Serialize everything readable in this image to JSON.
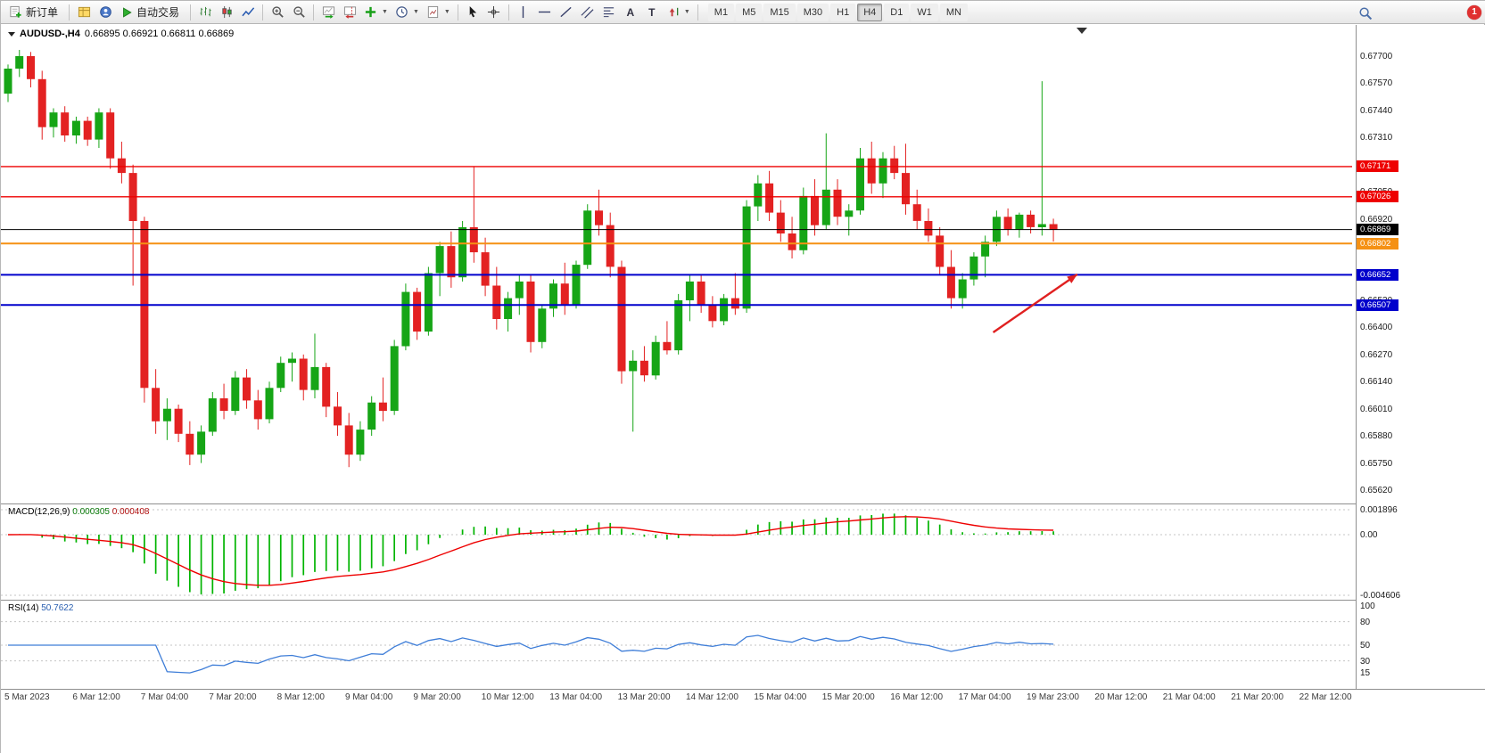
{
  "toolbar": {
    "new_order": "新订单",
    "auto_trading": "自动交易",
    "text_tool": "A",
    "label_tool": "T",
    "timeframes": [
      "M1",
      "M5",
      "M15",
      "M30",
      "H1",
      "H4",
      "D1",
      "W1",
      "MN"
    ],
    "active_timeframe": "H4",
    "notification_count": "1",
    "icons": [
      "new-order-icon",
      "market-watch-icon",
      "navigator-icon",
      "autotrading-icon",
      "bar-chart-icon",
      "candlestick-chart-icon",
      "line-chart-icon",
      "zoom-in-icon",
      "zoom-out-icon",
      "auto-scroll-icon",
      "chart-shift-icon",
      "indicators-icon",
      "periods-icon",
      "templates-icon",
      "cursor-icon",
      "crosshair-icon",
      "vertical-line-icon",
      "horizontal-line-icon",
      "trendline-icon",
      "channel-icon",
      "fibonacci-icon",
      "text-icon",
      "label-icon",
      "shapes-icon",
      "search-icon"
    ]
  },
  "chart": {
    "symbol_period": "AUDUSD-,H4",
    "ohlc": "0.66895 0.66921 0.66811 0.66869",
    "macd_label": "MACD(12,26,9)",
    "macd_value_main": "0.000305",
    "macd_value_signal": "0.000408",
    "rsi_label": "RSI(14)",
    "rsi_value": "50.7622"
  },
  "chart_data": {
    "type": "candlestick",
    "symbol": "AUDUSD",
    "timeframe": "H4",
    "title": "AUDUSD-,H4 0.66895 0.66921 0.66811 0.66869",
    "colors": {
      "up": "#16a516",
      "down": "#e32222",
      "current_price": "#000000"
    },
    "price_axis": {
      "max": 0.677,
      "min": 0.6562,
      "step": 0.0013,
      "ticks": [
        "0.67700",
        "0.67570",
        "0.67440",
        "0.67310",
        "0.67180",
        "0.67050",
        "0.66920",
        "0.66790",
        "0.66660",
        "0.66530",
        "0.66400",
        "0.66270",
        "0.66140",
        "0.66010",
        "0.65880",
        "0.65750",
        "0.65620"
      ]
    },
    "levels": [
      {
        "value": 0.67171,
        "label": "0.67171",
        "color": "#ee0000",
        "line_width": 1.4,
        "type": "resistance"
      },
      {
        "value": 0.67026,
        "label": "0.67026",
        "color": "#ee0000",
        "line_width": 1.4,
        "type": "resistance"
      },
      {
        "value": 0.66869,
        "label": "0.66869",
        "color": "#000000",
        "line_width": 1,
        "type": "current-price"
      },
      {
        "value": 0.66802,
        "label": "0.66802",
        "color": "#f59114",
        "line_width": 2,
        "type": "pivot"
      },
      {
        "value": 0.66652,
        "label": "0.66652",
        "color": "#0000cc",
        "line_width": 2,
        "type": "support"
      },
      {
        "value": 0.66507,
        "label": "0.66507",
        "color": "#0000cc",
        "line_width": 2,
        "type": "support"
      }
    ],
    "time_labels": [
      "5 Mar 2023",
      "6 Mar 12:00",
      "7 Mar 04:00",
      "7 Mar 20:00",
      "8 Mar 12:00",
      "9 Mar 04:00",
      "9 Mar 20:00",
      "10 Mar 12:00",
      "13 Mar 04:00",
      "13 Mar 20:00",
      "14 Mar 12:00",
      "15 Mar 04:00",
      "15 Mar 20:00",
      "16 Mar 12:00",
      "17 Mar 04:00",
      "19 Mar 23:00",
      "20 Mar 12:00",
      "21 Mar 04:00",
      "21 Mar 20:00",
      "22 Mar 12:00"
    ],
    "candles": [
      [
        0.6752,
        0.6766,
        0.6748,
        0.6764
      ],
      [
        0.6764,
        0.6773,
        0.676,
        0.677
      ],
      [
        0.677,
        0.6772,
        0.6755,
        0.6759
      ],
      [
        0.6759,
        0.6763,
        0.673,
        0.6736
      ],
      [
        0.6736,
        0.6745,
        0.6731,
        0.6743
      ],
      [
        0.6743,
        0.6746,
        0.6729,
        0.6732
      ],
      [
        0.6732,
        0.6741,
        0.6728,
        0.6739
      ],
      [
        0.6739,
        0.6741,
        0.6727,
        0.673
      ],
      [
        0.673,
        0.6745,
        0.6726,
        0.6743
      ],
      [
        0.6743,
        0.6745,
        0.6716,
        0.6721
      ],
      [
        0.6721,
        0.6729,
        0.6709,
        0.6714
      ],
      [
        0.6714,
        0.6718,
        0.666,
        0.6691
      ],
      [
        0.6691,
        0.6693,
        0.6604,
        0.6611
      ],
      [
        0.6611,
        0.662,
        0.6589,
        0.6595
      ],
      [
        0.6595,
        0.6606,
        0.6586,
        0.6601
      ],
      [
        0.6601,
        0.6603,
        0.6585,
        0.6589
      ],
      [
        0.6589,
        0.6595,
        0.6574,
        0.6579
      ],
      [
        0.6579,
        0.6593,
        0.6575,
        0.659
      ],
      [
        0.659,
        0.6609,
        0.6588,
        0.6606
      ],
      [
        0.6606,
        0.6613,
        0.6596,
        0.66
      ],
      [
        0.66,
        0.6619,
        0.6598,
        0.6616
      ],
      [
        0.6616,
        0.662,
        0.6601,
        0.6605
      ],
      [
        0.6605,
        0.661,
        0.6591,
        0.6596
      ],
      [
        0.6596,
        0.6614,
        0.6594,
        0.6611
      ],
      [
        0.6611,
        0.6626,
        0.6609,
        0.6623
      ],
      [
        0.6623,
        0.6628,
        0.6614,
        0.6625
      ],
      [
        0.6625,
        0.6627,
        0.6605,
        0.661
      ],
      [
        0.661,
        0.6637,
        0.6606,
        0.6621
      ],
      [
        0.6621,
        0.6623,
        0.6597,
        0.6602
      ],
      [
        0.6602,
        0.6609,
        0.6588,
        0.6593
      ],
      [
        0.6593,
        0.6599,
        0.6573,
        0.6579
      ],
      [
        0.6579,
        0.6595,
        0.6576,
        0.6591
      ],
      [
        0.6591,
        0.6607,
        0.6588,
        0.6604
      ],
      [
        0.6604,
        0.6616,
        0.6595,
        0.66
      ],
      [
        0.66,
        0.6634,
        0.6598,
        0.6631
      ],
      [
        0.6631,
        0.6661,
        0.6629,
        0.6657
      ],
      [
        0.6657,
        0.6659,
        0.6634,
        0.6638
      ],
      [
        0.6638,
        0.6669,
        0.6636,
        0.6666
      ],
      [
        0.6666,
        0.6681,
        0.6655,
        0.6679
      ],
      [
        0.6679,
        0.6686,
        0.6659,
        0.6664
      ],
      [
        0.6664,
        0.6691,
        0.6662,
        0.6688
      ],
      [
        0.6688,
        0.6717,
        0.6671,
        0.6676
      ],
      [
        0.6676,
        0.6683,
        0.6655,
        0.666
      ],
      [
        0.666,
        0.6669,
        0.6639,
        0.6644
      ],
      [
        0.6644,
        0.6657,
        0.6638,
        0.6654
      ],
      [
        0.6654,
        0.6665,
        0.6646,
        0.6662
      ],
      [
        0.6662,
        0.6665,
        0.6628,
        0.6633
      ],
      [
        0.6633,
        0.6651,
        0.663,
        0.6649
      ],
      [
        0.6649,
        0.6663,
        0.6645,
        0.6661
      ],
      [
        0.6661,
        0.6671,
        0.6646,
        0.6651
      ],
      [
        0.6651,
        0.6672,
        0.6649,
        0.667
      ],
      [
        0.667,
        0.6699,
        0.6668,
        0.6696
      ],
      [
        0.6696,
        0.6706,
        0.6684,
        0.6689
      ],
      [
        0.6689,
        0.6695,
        0.6664,
        0.6669
      ],
      [
        0.6669,
        0.6672,
        0.6613,
        0.6619
      ],
      [
        0.6619,
        0.6629,
        0.659,
        0.6624
      ],
      [
        0.6624,
        0.6631,
        0.6614,
        0.6617
      ],
      [
        0.6617,
        0.6636,
        0.6615,
        0.6633
      ],
      [
        0.6633,
        0.6643,
        0.6627,
        0.6629
      ],
      [
        0.6629,
        0.6656,
        0.6627,
        0.6653
      ],
      [
        0.6653,
        0.6665,
        0.6643,
        0.6662
      ],
      [
        0.6662,
        0.6665,
        0.6647,
        0.6651
      ],
      [
        0.6651,
        0.6655,
        0.664,
        0.6643
      ],
      [
        0.6643,
        0.6656,
        0.6641,
        0.6654
      ],
      [
        0.6654,
        0.6666,
        0.6646,
        0.6649
      ],
      [
        0.6649,
        0.6701,
        0.6647,
        0.6698
      ],
      [
        0.6698,
        0.6713,
        0.6691,
        0.6709
      ],
      [
        0.6709,
        0.6715,
        0.6691,
        0.6695
      ],
      [
        0.6695,
        0.6701,
        0.6681,
        0.6685
      ],
      [
        0.6685,
        0.6693,
        0.6673,
        0.6677
      ],
      [
        0.6677,
        0.6707,
        0.6675,
        0.6703
      ],
      [
        0.6703,
        0.6711,
        0.6684,
        0.6689
      ],
      [
        0.6689,
        0.6733,
        0.6687,
        0.6706
      ],
      [
        0.6706,
        0.6711,
        0.6689,
        0.6693
      ],
      [
        0.6693,
        0.6699,
        0.6684,
        0.6696
      ],
      [
        0.6696,
        0.6726,
        0.6694,
        0.6721
      ],
      [
        0.6721,
        0.6729,
        0.6704,
        0.6709
      ],
      [
        0.6709,
        0.6724,
        0.6702,
        0.6721
      ],
      [
        0.6721,
        0.6727,
        0.6711,
        0.6714
      ],
      [
        0.6714,
        0.6728,
        0.6694,
        0.6699
      ],
      [
        0.6699,
        0.6706,
        0.6687,
        0.6691
      ],
      [
        0.6691,
        0.6697,
        0.6681,
        0.6684
      ],
      [
        0.6684,
        0.6688,
        0.6665,
        0.6669
      ],
      [
        0.6669,
        0.6677,
        0.6649,
        0.6654
      ],
      [
        0.6654,
        0.6666,
        0.6649,
        0.6663
      ],
      [
        0.6663,
        0.6676,
        0.666,
        0.6674
      ],
      [
        0.6674,
        0.6684,
        0.6664,
        0.6681
      ],
      [
        0.6681,
        0.6696,
        0.6679,
        0.6693
      ],
      [
        0.6693,
        0.6697,
        0.6684,
        0.6687
      ],
      [
        0.6687,
        0.6695,
        0.6683,
        0.6694
      ],
      [
        0.6694,
        0.6696,
        0.6685,
        0.6688
      ],
      [
        0.6688,
        0.6758,
        0.6684,
        0.66895
      ],
      [
        0.66895,
        0.66921,
        0.66811,
        0.66869
      ]
    ],
    "indicators": {
      "macd": {
        "label": "MACD(12,26,9)",
        "params": [
          12,
          26,
          9
        ],
        "value": 0.000305,
        "signal_value": 0.000408,
        "axis": {
          "labels": [
            "0.001896",
            "0.00",
            "-0.004606"
          ],
          "values": [
            0.001896,
            0,
            -0.004606
          ]
        },
        "colors": {
          "histogram": "#00b400",
          "signal": "#ee0000"
        }
      },
      "rsi": {
        "label": "RSI(14)",
        "period": 14,
        "value": 50.7622,
        "axis": {
          "labels": [
            "100",
            "80",
            "50",
            "30",
            "15"
          ],
          "values": [
            100,
            80,
            50,
            30,
            15
          ]
        },
        "levels": [
          80,
          50,
          30
        ],
        "color": "#3f7ed8"
      }
    },
    "annotations": [
      {
        "type": "arrow",
        "color": "#e02020",
        "from": {
          "i": 86.7,
          "price": 0.66376
        },
        "to": {
          "i": 94.1,
          "price": 0.66654
        }
      }
    ]
  }
}
